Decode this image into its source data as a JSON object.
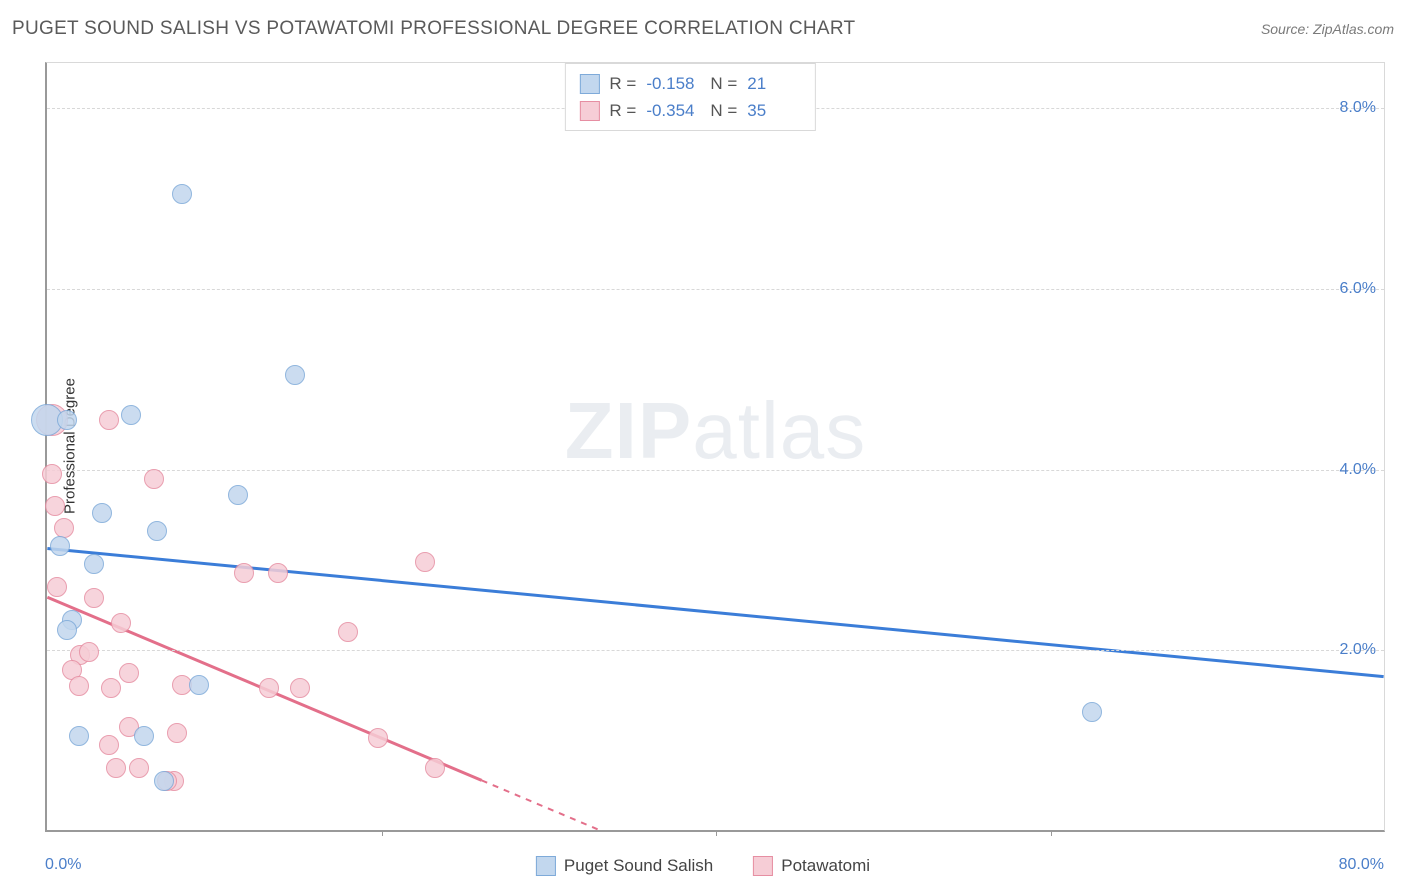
{
  "title": "PUGET SOUND SALISH VS POTAWATOMI PROFESSIONAL DEGREE CORRELATION CHART",
  "source": "Source: ZipAtlas.com",
  "ylabel": "Professional Degree",
  "watermark_zip": "ZIP",
  "watermark_atlas": "atlas",
  "xlim": [
    0,
    80
  ],
  "ylim": [
    0,
    8.5
  ],
  "yticks": [
    2.0,
    4.0,
    6.0,
    8.0
  ],
  "ytick_labels": [
    "2.0%",
    "4.0%",
    "6.0%",
    "8.0%"
  ],
  "xtick_marks": [
    20,
    40,
    60
  ],
  "xmin_label": "0.0%",
  "xmax_label": "80.0%",
  "grid_color": "#d8d8d8",
  "series": {
    "salish": {
      "name": "Puget Sound Salish",
      "fill": "#c2d7ee",
      "stroke": "#7eaad9",
      "line_color": "#3b7dd8",
      "R": "-0.158",
      "N": "21",
      "marker_r": 10,
      "regression": {
        "x1": 0,
        "y1": 3.12,
        "x2": 80,
        "y2": 1.7,
        "dash_from_x": 80
      },
      "points": [
        [
          0.0,
          4.55,
          16
        ],
        [
          8.1,
          7.05
        ],
        [
          1.2,
          4.55
        ],
        [
          5.0,
          4.6
        ],
        [
          14.8,
          5.05
        ],
        [
          11.4,
          3.72
        ],
        [
          3.3,
          3.52
        ],
        [
          6.6,
          3.32
        ],
        [
          0.8,
          3.15
        ],
        [
          2.8,
          2.95
        ],
        [
          1.5,
          2.34
        ],
        [
          1.2,
          2.22
        ],
        [
          9.1,
          1.62
        ],
        [
          7.0,
          0.55
        ],
        [
          5.8,
          1.05
        ],
        [
          1.9,
          1.05
        ],
        [
          62.5,
          1.32
        ]
      ]
    },
    "potawatomi": {
      "name": "Potawatomi",
      "fill": "#f6cdd6",
      "stroke": "#e68ea2",
      "line_color": "#e36f8a",
      "R": "-0.354",
      "N": "35",
      "marker_r": 10,
      "regression": {
        "x1": 0,
        "y1": 2.58,
        "x2": 26,
        "y2": 0.55,
        "dash_to_x": 33
      },
      "points": [
        [
          0.3,
          4.55,
          16
        ],
        [
          3.7,
          4.55
        ],
        [
          0.3,
          3.95
        ],
        [
          6.4,
          3.9
        ],
        [
          0.5,
          3.6
        ],
        [
          1.0,
          3.35
        ],
        [
          22.6,
          2.98
        ],
        [
          11.8,
          2.85
        ],
        [
          13.8,
          2.85
        ],
        [
          0.6,
          2.7
        ],
        [
          2.8,
          2.58
        ],
        [
          4.4,
          2.3
        ],
        [
          18.0,
          2.2
        ],
        [
          2.0,
          1.95
        ],
        [
          2.5,
          1.98
        ],
        [
          1.5,
          1.78
        ],
        [
          4.9,
          1.75
        ],
        [
          1.9,
          1.6
        ],
        [
          3.8,
          1.58
        ],
        [
          8.1,
          1.62
        ],
        [
          15.1,
          1.58
        ],
        [
          13.3,
          1.58
        ],
        [
          4.9,
          1.15
        ],
        [
          7.8,
          1.08
        ],
        [
          3.7,
          0.95
        ],
        [
          19.8,
          1.03
        ],
        [
          4.1,
          0.7
        ],
        [
          5.5,
          0.7
        ],
        [
          7.6,
          0.55
        ],
        [
          23.2,
          0.7
        ],
        [
          7.2,
          0.55
        ]
      ]
    }
  }
}
